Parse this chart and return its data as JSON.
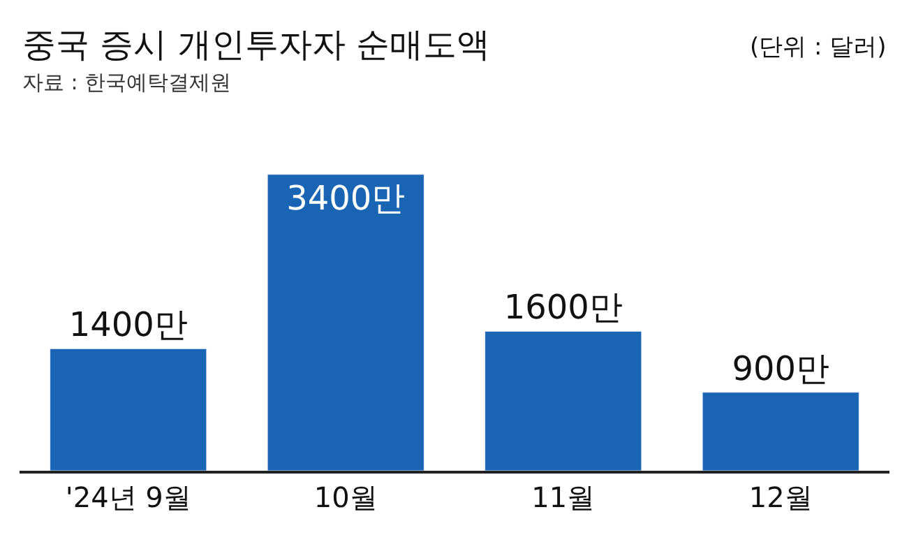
{
  "chart_data": {
    "type": "bar",
    "title": "중국 증시 개인투자자 순매도액",
    "subtitle": "(단위 : 달러)",
    "annotations": [
      "자료 : 한국예탁결제원"
    ],
    "categories": [
      "'24년 9월",
      "10월",
      "11월",
      "12월"
    ],
    "values": [
      1400,
      3400,
      1600,
      900
    ],
    "value_labels": [
      "1400만",
      "3400만",
      "1600만",
      "900만"
    ],
    "color": "#1a64b4",
    "legend": false,
    "tick_labels": "x"
  }
}
